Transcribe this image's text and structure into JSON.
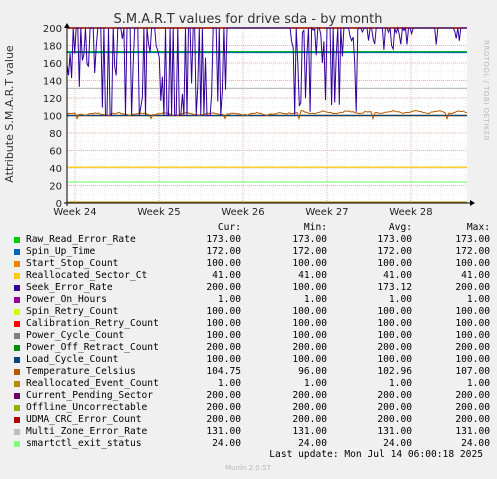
{
  "title": "S.M.A.R.T values for drive sda - by month",
  "ylabel": "Attribute S.M.A.R.T value",
  "watermark": "RRDTOOL / TOBI OETIKER",
  "version": "Munin 2.0.57",
  "colors": {
    "background": "#f0f0f0",
    "plot_background": "#ffffff",
    "grid_major": "#e8b4b4",
    "grid_minor": "#e8e8e8"
  },
  "legend_headers": {
    "cur": "Cur:",
    "min": "Min:",
    "avg": "Avg:",
    "max": "Max:"
  },
  "last_update": "Last update: Mon Jul 14 06:00:18 2025",
  "chart_data": {
    "type": "line",
    "ylim": [
      0,
      200
    ],
    "y_ticks": [
      0,
      20,
      40,
      60,
      80,
      100,
      120,
      140,
      160,
      180,
      200
    ],
    "x_ticks": [
      "Week 24",
      "Week 25",
      "Week 26",
      "Week 27",
      "Week 28"
    ],
    "series": [
      {
        "name": "Raw_Read_Error_Rate",
        "color": "#00cc00",
        "cur": "173.00",
        "min": "173.00",
        "avg": "173.00",
        "max": "173.00"
      },
      {
        "name": "Spin_Up_Time",
        "color": "#0066b3",
        "cur": "172.00",
        "min": "172.00",
        "avg": "172.00",
        "max": "172.00"
      },
      {
        "name": "Start_Stop_Count",
        "color": "#ff8000",
        "cur": "100.00",
        "min": "100.00",
        "avg": "100.00",
        "max": "100.00"
      },
      {
        "name": "Reallocated_Sector_Ct",
        "color": "#ffcc00",
        "cur": "41.00",
        "min": "41.00",
        "avg": "41.00",
        "max": "41.00"
      },
      {
        "name": "Seek_Error_Rate",
        "color": "#330099",
        "cur": "200.00",
        "min": "100.00",
        "avg": "173.12",
        "max": "200.00"
      },
      {
        "name": "Power_On_Hours",
        "color": "#990099",
        "cur": "1.00",
        "min": "1.00",
        "avg": "1.00",
        "max": "1.00"
      },
      {
        "name": "Spin_Retry_Count",
        "color": "#ccff00",
        "cur": "100.00",
        "min": "100.00",
        "avg": "100.00",
        "max": "100.00"
      },
      {
        "name": "Calibration_Retry_Count",
        "color": "#ff0000",
        "cur": "100.00",
        "min": "100.00",
        "avg": "100.00",
        "max": "100.00"
      },
      {
        "name": "Power_Cycle_Count",
        "color": "#808080",
        "cur": "100.00",
        "min": "100.00",
        "avg": "100.00",
        "max": "100.00"
      },
      {
        "name": "Power_Off_Retract_Count",
        "color": "#008f00",
        "cur": "200.00",
        "min": "200.00",
        "avg": "200.00",
        "max": "200.00"
      },
      {
        "name": "Load_Cycle_Count",
        "color": "#00487d",
        "cur": "100.00",
        "min": "100.00",
        "avg": "100.00",
        "max": "100.00"
      },
      {
        "name": "Temperature_Celsius",
        "color": "#b35a00",
        "cur": "104.75",
        "min": "96.00",
        "avg": "102.96",
        "max": "107.00"
      },
      {
        "name": "Reallocated_Event_Count",
        "color": "#b38f00",
        "cur": "1.00",
        "min": "1.00",
        "avg": "1.00",
        "max": "1.00"
      },
      {
        "name": "Current_Pending_Sector",
        "color": "#6b006b",
        "cur": "200.00",
        "min": "200.00",
        "avg": "200.00",
        "max": "200.00"
      },
      {
        "name": "Offline_Uncorrectable",
        "color": "#8fb300",
        "cur": "200.00",
        "min": "200.00",
        "avg": "200.00",
        "max": "200.00"
      },
      {
        "name": "UDMA_CRC_Error_Count",
        "color": "#b30000",
        "cur": "200.00",
        "min": "200.00",
        "avg": "200.00",
        "max": "200.00"
      },
      {
        "name": "Multi_Zone_Error_Rate",
        "color": "#bebebe",
        "cur": "131.00",
        "min": "131.00",
        "avg": "131.00",
        "max": "131.00"
      },
      {
        "name": "smartctl_exit_status",
        "color": "#80ff80",
        "cur": "24.00",
        "min": "24.00",
        "avg": "24.00",
        "max": "24.00"
      }
    ]
  }
}
